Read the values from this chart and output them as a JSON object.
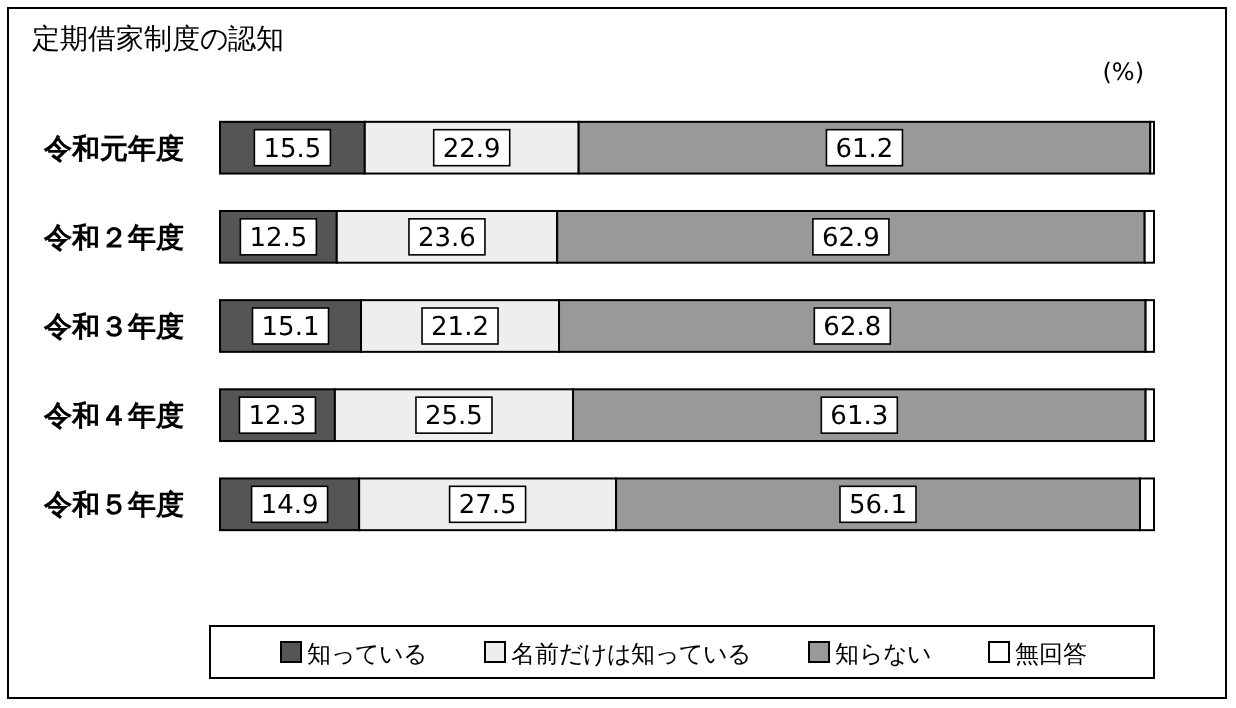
{
  "chart_data": {
    "type": "bar",
    "orientation": "horizontal",
    "stacked": true,
    "title": "定期借家制度の認知",
    "annotations": [
      "(%)"
    ],
    "categories": [
      "令和元年度",
      "令和２年度",
      "令和３年度",
      "令和４年度",
      "令和５年度"
    ],
    "series": [
      {
        "name": "知っている",
        "color": "#555555",
        "values": [
          15.5,
          12.5,
          15.1,
          12.3,
          14.9
        ],
        "value_labels": [
          "15.5",
          "12.5",
          "15.1",
          "12.3",
          "14.9"
        ]
      },
      {
        "name": "名前だけは知っている",
        "color": "#eeeeee",
        "values": [
          22.9,
          23.6,
          21.2,
          25.5,
          27.5
        ],
        "value_labels": [
          "22.9",
          "23.6",
          "21.2",
          "25.5",
          "27.5"
        ]
      },
      {
        "name": "知らない",
        "color": "#999999",
        "values": [
          61.2,
          62.9,
          62.8,
          61.3,
          56.1
        ],
        "value_labels": [
          "61.2",
          "62.9",
          "62.8",
          "61.3",
          "56.1"
        ]
      },
      {
        "name": "無回答",
        "color": "#ffffff",
        "values": [
          0.4,
          1.0,
          0.9,
          0.9,
          1.5
        ],
        "value_labels": [
          null,
          null,
          null,
          null,
          null
        ]
      }
    ],
    "legend": "bottom"
  }
}
